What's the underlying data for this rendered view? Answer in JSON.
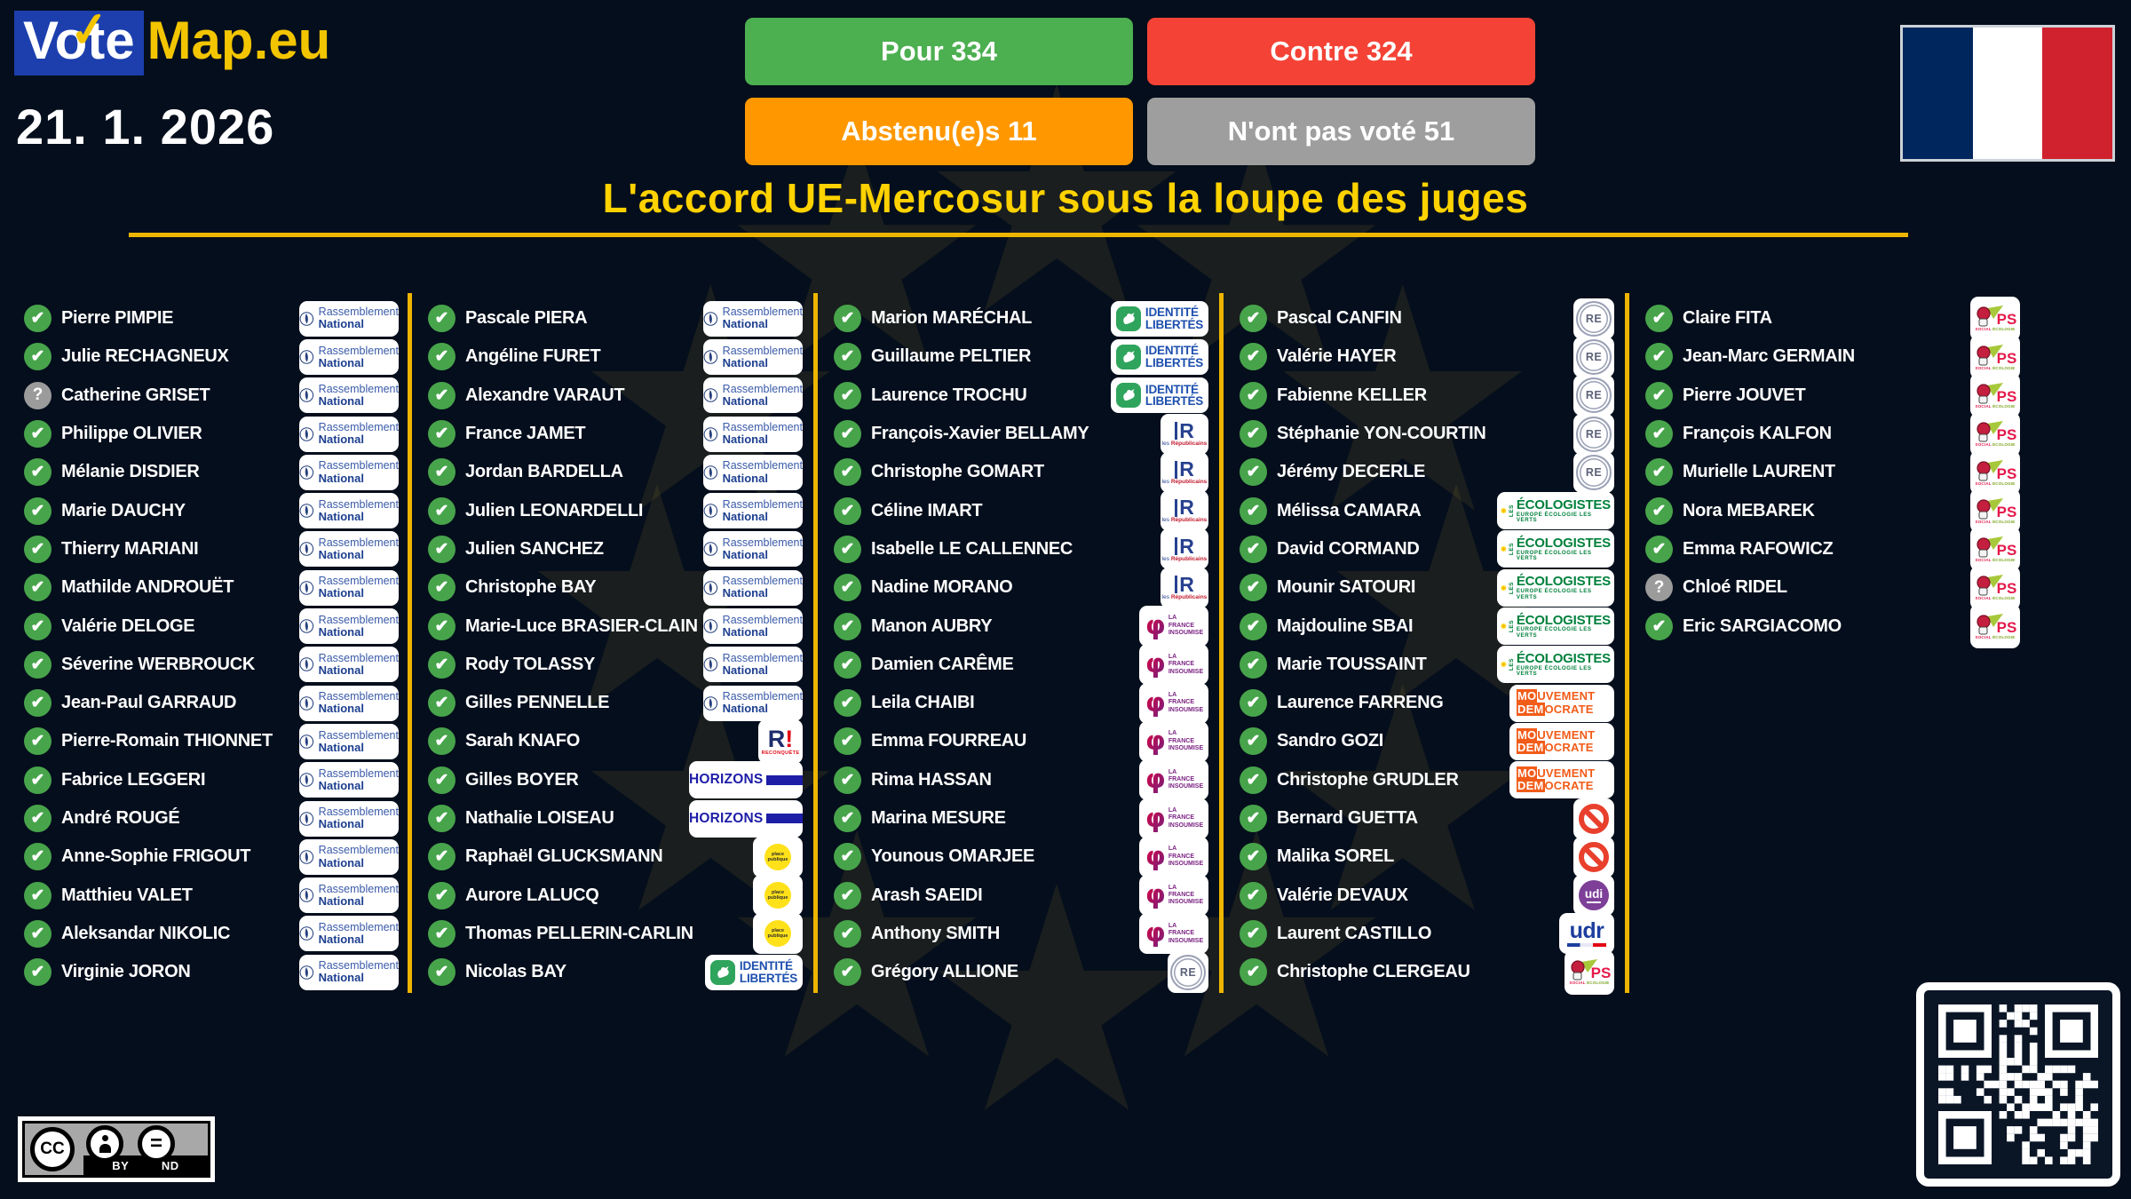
{
  "header": {
    "logo": {
      "vote": "Vote",
      "map": "Map.eu"
    },
    "date": "21. 1. 2026",
    "title": "L'accord UE-Mercosur sous la loupe des juges",
    "buttons": [
      {
        "id": "pour",
        "label": "Pour 334",
        "color": "#4caf50"
      },
      {
        "id": "contre",
        "label": "Contre 324",
        "color": "#f44336"
      },
      {
        "id": "abstenu",
        "label": "Abstenu(e)s 11",
        "color": "#ff9800"
      },
      {
        "id": "nonvote",
        "label": "N'ont pas voté 51",
        "color": "#9e9e9e"
      }
    ]
  },
  "colors": {
    "background": "#050e1c",
    "accent_gold": "#eeb500",
    "title_yellow": "#ffd200",
    "vote_pour_green": "#47a44b",
    "vote_unknown_gray": "#9b9b9b",
    "logo_blue": "#1c3fad"
  },
  "votes": {
    "pour_icon": "✔",
    "unknown_icon": "?"
  },
  "parties": {
    "rn": {
      "line1": "Rassemblement",
      "line2": "National"
    },
    "reconquete": {
      "letter": "R",
      "bang": "!",
      "caption": "RECONQUÊTE"
    },
    "horizons": {
      "label": "HORIZONS"
    },
    "pp": {
      "line1": "place",
      "line2": "publique"
    },
    "il": {
      "line1": "IDENTITÉ",
      "line2": "LIBERTÉS"
    },
    "lr": {
      "letter": "R",
      "cap1": "les",
      "cap2": "Républicains"
    },
    "lfi": {
      "line1": "LA",
      "line2": "FRANCE",
      "line3": "INSOUMISE"
    },
    "re": {
      "label": "RE"
    },
    "eelv": {
      "les": "LES",
      "label": "ÉCOLOGISTES",
      "subtitle": "EUROPE ÉCOLOGIE LES VERTS"
    },
    "modem": {
      "l1a": "MO",
      "l1b": "UVEMENT",
      "l2a": "DEM",
      "l2b": "OCRATE"
    },
    "ni": {
      "icon": "no-entry"
    },
    "udi": {
      "label": "udi"
    },
    "udr": {
      "label": "udr"
    },
    "ps": {
      "label": "PS",
      "cap1": "SOCIAL",
      "cap2": "ÉCOLOGIE"
    }
  },
  "columns": [
    [
      {
        "name": "Pierre PIMPIE",
        "vote": "pour",
        "party": "rn"
      },
      {
        "name": "Julie RECHAGNEUX",
        "vote": "pour",
        "party": "rn"
      },
      {
        "name": "Catherine GRISET",
        "vote": "unknown",
        "party": "rn"
      },
      {
        "name": "Philippe OLIVIER",
        "vote": "pour",
        "party": "rn"
      },
      {
        "name": "Mélanie DISDIER",
        "vote": "pour",
        "party": "rn"
      },
      {
        "name": "Marie DAUCHY",
        "vote": "pour",
        "party": "rn"
      },
      {
        "name": "Thierry MARIANI",
        "vote": "pour",
        "party": "rn"
      },
      {
        "name": "Mathilde ANDROUËT",
        "vote": "pour",
        "party": "rn"
      },
      {
        "name": "Valérie DELOGE",
        "vote": "pour",
        "party": "rn"
      },
      {
        "name": "Séverine WERBROUCK",
        "vote": "pour",
        "party": "rn"
      },
      {
        "name": "Jean-Paul GARRAUD",
        "vote": "pour",
        "party": "rn"
      },
      {
        "name": "Pierre-Romain THIONNET",
        "vote": "pour",
        "party": "rn"
      },
      {
        "name": "Fabrice LEGGERI",
        "vote": "pour",
        "party": "rn"
      },
      {
        "name": "André ROUGÉ",
        "vote": "pour",
        "party": "rn"
      },
      {
        "name": "Anne-Sophie FRIGOUT",
        "vote": "pour",
        "party": "rn"
      },
      {
        "name": "Matthieu VALET",
        "vote": "pour",
        "party": "rn"
      },
      {
        "name": "Aleksandar NIKOLIC",
        "vote": "pour",
        "party": "rn"
      },
      {
        "name": "Virginie JORON",
        "vote": "pour",
        "party": "rn"
      }
    ],
    [
      {
        "name": "Pascale PIERA",
        "vote": "pour",
        "party": "rn"
      },
      {
        "name": "Angéline FURET",
        "vote": "pour",
        "party": "rn"
      },
      {
        "name": "Alexandre VARAUT",
        "vote": "pour",
        "party": "rn"
      },
      {
        "name": "France JAMET",
        "vote": "pour",
        "party": "rn"
      },
      {
        "name": "Jordan BARDELLA",
        "vote": "pour",
        "party": "rn"
      },
      {
        "name": "Julien LEONARDELLI",
        "vote": "pour",
        "party": "rn"
      },
      {
        "name": "Julien SANCHEZ",
        "vote": "pour",
        "party": "rn"
      },
      {
        "name": "Christophe BAY",
        "vote": "pour",
        "party": "rn"
      },
      {
        "name": "Marie-Luce BRASIER-CLAIN",
        "vote": "pour",
        "party": "rn"
      },
      {
        "name": "Rody TOLASSY",
        "vote": "pour",
        "party": "rn"
      },
      {
        "name": "Gilles PENNELLE",
        "vote": "pour",
        "party": "rn"
      },
      {
        "name": "Sarah KNAFO",
        "vote": "pour",
        "party": "reconquete"
      },
      {
        "name": "Gilles BOYER",
        "vote": "pour",
        "party": "horizons"
      },
      {
        "name": "Nathalie LOISEAU",
        "vote": "pour",
        "party": "horizons"
      },
      {
        "name": "Raphaël GLUCKSMANN",
        "vote": "pour",
        "party": "pp"
      },
      {
        "name": "Aurore LALUCQ",
        "vote": "pour",
        "party": "pp"
      },
      {
        "name": "Thomas PELLERIN-CARLIN",
        "vote": "pour",
        "party": "pp"
      },
      {
        "name": "Nicolas BAY",
        "vote": "pour",
        "party": "il"
      }
    ],
    [
      {
        "name": "Marion MARÉCHAL",
        "vote": "pour",
        "party": "il"
      },
      {
        "name": "Guillaume PELTIER",
        "vote": "pour",
        "party": "il"
      },
      {
        "name": "Laurence TROCHU",
        "vote": "pour",
        "party": "il"
      },
      {
        "name": "François-Xavier BELLAMY",
        "vote": "pour",
        "party": "lr"
      },
      {
        "name": "Christophe GOMART",
        "vote": "pour",
        "party": "lr"
      },
      {
        "name": "Céline IMART",
        "vote": "pour",
        "party": "lr"
      },
      {
        "name": "Isabelle LE CALLENNEC",
        "vote": "pour",
        "party": "lr"
      },
      {
        "name": "Nadine MORANO",
        "vote": "pour",
        "party": "lr"
      },
      {
        "name": "Manon AUBRY",
        "vote": "pour",
        "party": "lfi"
      },
      {
        "name": "Damien CARÊME",
        "vote": "pour",
        "party": "lfi"
      },
      {
        "name": "Leila CHAIBI",
        "vote": "pour",
        "party": "lfi"
      },
      {
        "name": "Emma FOURREAU",
        "vote": "pour",
        "party": "lfi"
      },
      {
        "name": "Rima HASSAN",
        "vote": "pour",
        "party": "lfi"
      },
      {
        "name": "Marina MESURE",
        "vote": "pour",
        "party": "lfi"
      },
      {
        "name": "Younous OMARJEE",
        "vote": "pour",
        "party": "lfi"
      },
      {
        "name": "Arash SAEIDI",
        "vote": "pour",
        "party": "lfi"
      },
      {
        "name": "Anthony SMITH",
        "vote": "pour",
        "party": "lfi"
      },
      {
        "name": "Grégory ALLIONE",
        "vote": "pour",
        "party": "re"
      }
    ],
    [
      {
        "name": "Pascal CANFIN",
        "vote": "pour",
        "party": "re"
      },
      {
        "name": "Valérie HAYER",
        "vote": "pour",
        "party": "re"
      },
      {
        "name": "Fabienne KELLER",
        "vote": "pour",
        "party": "re"
      },
      {
        "name": "Stéphanie YON-COURTIN",
        "vote": "pour",
        "party": "re"
      },
      {
        "name": "Jérémy DECERLE",
        "vote": "pour",
        "party": "re"
      },
      {
        "name": "Mélissa CAMARA",
        "vote": "pour",
        "party": "eelv"
      },
      {
        "name": "David CORMAND",
        "vote": "pour",
        "party": "eelv"
      },
      {
        "name": "Mounir SATOURI",
        "vote": "pour",
        "party": "eelv"
      },
      {
        "name": "Majdouline SBAI",
        "vote": "pour",
        "party": "eelv"
      },
      {
        "name": "Marie TOUSSAINT",
        "vote": "pour",
        "party": "eelv"
      },
      {
        "name": "Laurence FARRENG",
        "vote": "pour",
        "party": "modem"
      },
      {
        "name": "Sandro GOZI",
        "vote": "pour",
        "party": "modem"
      },
      {
        "name": "Christophe GRUDLER",
        "vote": "pour",
        "party": "modem"
      },
      {
        "name": "Bernard GUETTA",
        "vote": "pour",
        "party": "ni"
      },
      {
        "name": "Malika SOREL",
        "vote": "pour",
        "party": "ni"
      },
      {
        "name": "Valérie DEVAUX",
        "vote": "pour",
        "party": "udi"
      },
      {
        "name": "Laurent CASTILLO",
        "vote": "pour",
        "party": "udr"
      },
      {
        "name": "Christophe CLERGEAU",
        "vote": "pour",
        "party": "ps"
      }
    ],
    [
      {
        "name": "Claire FITA",
        "vote": "pour",
        "party": "ps"
      },
      {
        "name": "Jean-Marc GERMAIN",
        "vote": "pour",
        "party": "ps"
      },
      {
        "name": "Pierre JOUVET",
        "vote": "pour",
        "party": "ps"
      },
      {
        "name": "François KALFON",
        "vote": "pour",
        "party": "ps"
      },
      {
        "name": "Murielle LAURENT",
        "vote": "pour",
        "party": "ps"
      },
      {
        "name": "Nora MEBAREK",
        "vote": "pour",
        "party": "ps"
      },
      {
        "name": "Emma RAFOWICZ",
        "vote": "pour",
        "party": "ps"
      },
      {
        "name": "Chloé RIDEL",
        "vote": "unknown",
        "party": "ps"
      },
      {
        "name": "Eric SARGIACOMO",
        "vote": "pour",
        "party": "ps"
      }
    ]
  ],
  "footer": {
    "license": {
      "cc": "CC",
      "by": "BY",
      "nd": "ND"
    },
    "qr_icon": "qr-code"
  }
}
